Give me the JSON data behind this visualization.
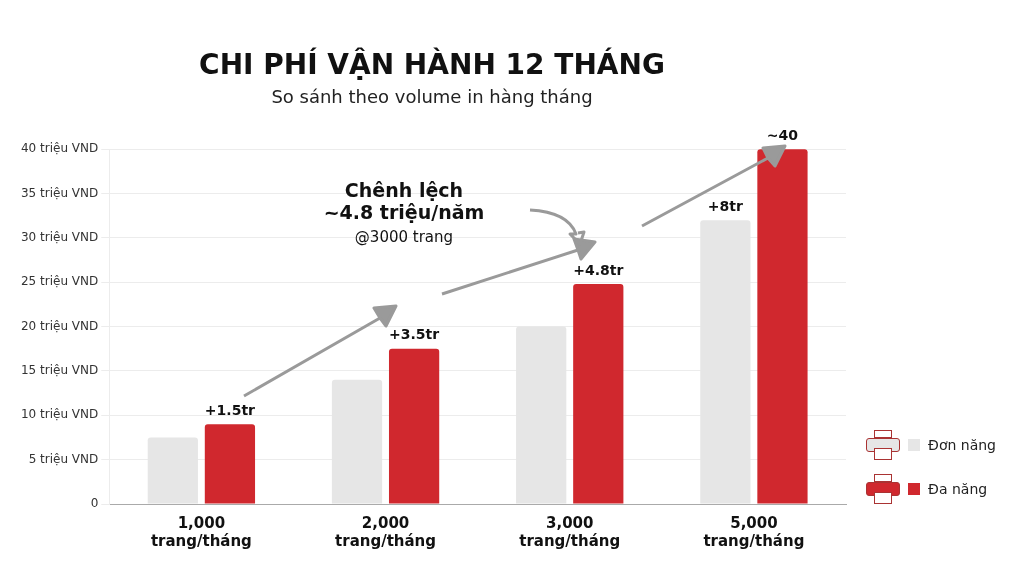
{
  "chart_data": {
    "type": "bar",
    "title": "CHI PHÍ VẬN HÀNH 12 THÁNG",
    "subtitle": "So sánh theo volume in hàng tháng",
    "categories": [
      "1,000\ntrang/tháng",
      "2,000\ntrang/tháng",
      "3,000\ntrang/tháng",
      "5,000\ntrang/tháng"
    ],
    "series": [
      {
        "name": "Đơn năng",
        "color": "#e6e6e6",
        "values": [
          7.5,
          14,
          20,
          32
        ]
      },
      {
        "name": "Đa năng",
        "color": "#d0282e",
        "values": [
          9,
          17.5,
          24.8,
          40
        ]
      }
    ],
    "ylim": [
      0,
      40
    ],
    "yticks": [
      0,
      {
        "value": 5,
        "label": "5 triệu VND"
      },
      {
        "value": 10,
        "label": "10 triệu VND"
      },
      {
        "value": 15,
        "label": "15 triệu VND"
      },
      {
        "value": 20,
        "label": "20 triệu VND"
      },
      {
        "value": 25,
        "label": "25 triệu VND"
      },
      {
        "value": 30,
        "label": "30 triệu VND"
      },
      {
        "value": 35,
        "label": "35 triệu VND"
      },
      {
        "value": 40,
        "label": "40 triệu VND"
      }
    ],
    "grid": "y",
    "legend": "bottom right",
    "annotations": [
      "Chênh lệch\n~4.8 triệu/năm\n@3000 trang",
      {
        "text": "+1.5tr",
        "x": "1,000\ntrang/tháng",
        "y": 9
      },
      {
        "text": "+3.5tr",
        "x": "2,000\ntrang/tháng",
        "y": 17.5
      },
      {
        "text": "+4.8tr",
        "x": "3,000\ntrang/tháng",
        "y": 24.8
      },
      {
        "text": "+8tr",
        "x": "5,000\ntrang/tháng",
        "y": 32
      },
      {
        "text": "~40",
        "x": "5,000\ntrang/tháng",
        "y": 40
      }
    ]
  }
}
